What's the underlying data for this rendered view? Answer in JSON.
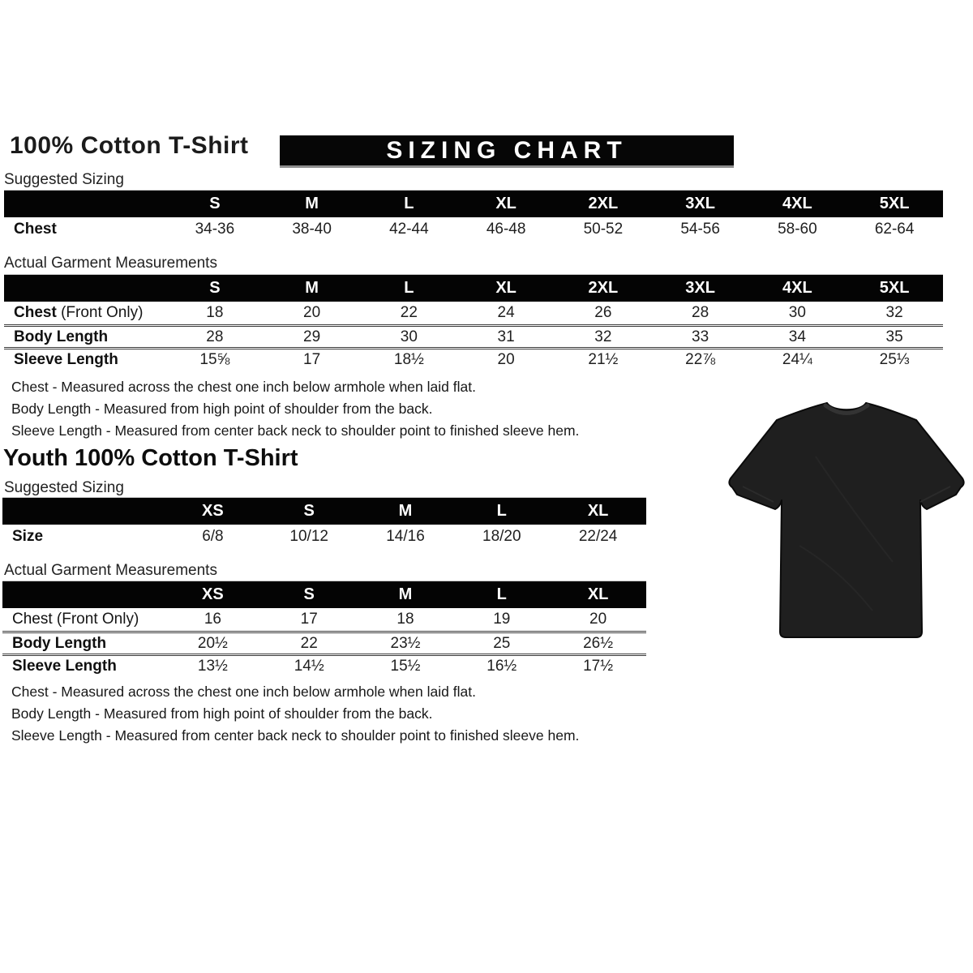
{
  "header": {
    "title": "100% Cotton T-Shirt",
    "banner": "SIZING CHART"
  },
  "adult": {
    "suggested": {
      "label": "Suggested Sizing",
      "columns": [
        "S",
        "M",
        "L",
        "XL",
        "2XL",
        "3XL",
        "4XL",
        "5XL"
      ],
      "rows": [
        {
          "label": "Chest",
          "label_bold": true,
          "label_suffix": "",
          "values": [
            "34-36",
            "38-40",
            "42-44",
            "46-48",
            "50-52",
            "54-56",
            "58-60",
            "62-64"
          ]
        }
      ]
    },
    "measurements": {
      "label": "Actual Garment Measurements",
      "columns": [
        "S",
        "M",
        "L",
        "XL",
        "2XL",
        "3XL",
        "4XL",
        "5XL"
      ],
      "rows": [
        {
          "label": "Chest",
          "label_bold": true,
          "label_suffix": " (Front Only)",
          "values": [
            "18",
            "20",
            "22",
            "24",
            "26",
            "28",
            "30",
            "32"
          ]
        },
        {
          "label": "Body Length",
          "label_bold": true,
          "label_suffix": "",
          "values": [
            "28",
            "29",
            "30",
            "31",
            "32",
            "33",
            "34",
            "35"
          ]
        },
        {
          "label": "Sleeve Length",
          "label_bold": true,
          "label_suffix": "",
          "values": [
            "15⅝",
            "17",
            "18½",
            "20",
            "21½",
            "22⅞",
            "24¼",
            "25⅓"
          ]
        }
      ]
    },
    "notes": [
      "Chest - Measured across the chest one inch below armhole when laid flat.",
      "Body Length - Measured from high point of shoulder from the back.",
      "Sleeve Length - Measured from center back neck to shoulder point to finished sleeve hem."
    ]
  },
  "youth": {
    "title": "Youth 100% Cotton T-Shirt",
    "suggested": {
      "label": "Suggested Sizing",
      "columns": [
        "XS",
        "S",
        "M",
        "L",
        "XL"
      ],
      "rows": [
        {
          "label": "Size",
          "label_bold": true,
          "label_suffix": "",
          "values": [
            "6/8",
            "10/12",
            "14/16",
            "18/20",
            "22/24"
          ]
        }
      ]
    },
    "measurements": {
      "label": "Actual Garment Measurements",
      "columns": [
        "XS",
        "S",
        "M",
        "L",
        "XL"
      ],
      "rows": [
        {
          "label": "Chest",
          "label_bold": false,
          "label_suffix": " (Front Only)",
          "values": [
            "16",
            "17",
            "18",
            "19",
            "20"
          ]
        },
        {
          "label": "Body Length",
          "label_bold": true,
          "label_suffix": "",
          "values": [
            "20½",
            "22",
            "23½",
            "25",
            "26½"
          ]
        },
        {
          "label": "Sleeve Length",
          "label_bold": true,
          "label_suffix": "",
          "values": [
            "13½",
            "14½",
            "15½",
            "16½",
            "17½"
          ]
        }
      ]
    },
    "notes": [
      "Chest - Measured across the chest one inch below armhole when laid flat.",
      "Body Length - Measured from high point of shoulder from the back.",
      "Sleeve Length - Measured from center back neck to shoulder point to finished sleeve hem."
    ]
  },
  "tshirt": {
    "alt": "black-tshirt",
    "body_color": "#1f1f1f",
    "outline_color": "#0a0a0a",
    "collar_color": "#333333"
  },
  "colors": {
    "bar_background": "#000000",
    "bar_text": "#ffffff",
    "page_background": "#ffffff",
    "text": "#1a1a1a"
  }
}
